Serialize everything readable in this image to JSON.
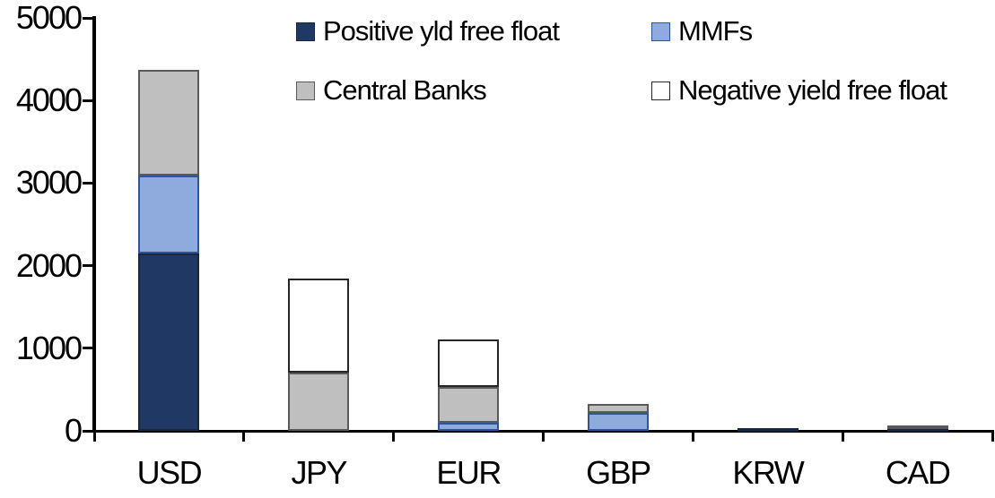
{
  "chart_data": {
    "type": "bar",
    "stacked": true,
    "title": "",
    "xlabel": "",
    "ylabel": "",
    "categories": [
      "USD",
      "JPY",
      "EUR",
      "GBP",
      "KRW",
      "CAD"
    ],
    "series": [
      {
        "name": "Positive yld free float",
        "color": "#1f3864",
        "border_color": "#16273f",
        "values": [
          2150,
          0,
          0,
          0,
          35,
          30
        ]
      },
      {
        "name": "MMFs",
        "color": "#8faadc",
        "border_color": "#2e5597",
        "values": [
          940,
          0,
          100,
          215,
          0,
          0
        ]
      },
      {
        "name": "Central Banks",
        "color": "#bfbfbf",
        "border_color": "#595959",
        "values": [
          1280,
          700,
          430,
          115,
          0,
          30
        ]
      },
      {
        "name": "Negative yield free float",
        "color": "#ffffff",
        "border_color": "#262626",
        "values": [
          0,
          1140,
          580,
          0,
          0,
          0
        ]
      }
    ],
    "totals": [
      4370,
      1840,
      1110,
      330,
      35,
      60
    ],
    "ylim": [
      0,
      5000
    ],
    "yticks": [
      "0",
      "1000",
      "2000",
      "3000",
      "4000",
      "5000"
    ],
    "grid": false,
    "legend_position": "inside-top",
    "legend_rows": [
      [
        "Positive yld free float",
        "MMFs"
      ],
      [
        "Central Banks",
        "Negative yield free float"
      ]
    ],
    "axis_color": "#000000"
  }
}
